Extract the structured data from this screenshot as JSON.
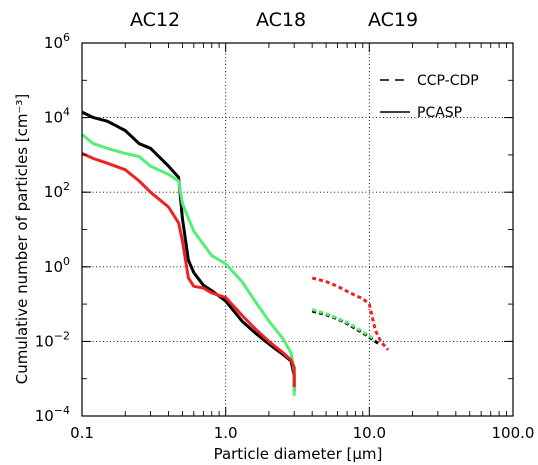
{
  "chart_data": {
    "type": "line",
    "xscale": "log",
    "yscale": "log",
    "xlim": [
      0.1,
      100.0
    ],
    "ylim": [
      0.0001,
      1000000
    ],
    "xlabel": "Particle diameter [μm]",
    "ylabel": "Cumulative number of particles [cm⁻³]",
    "x_ticks": [
      {
        "value": 0.1,
        "label": "0.1"
      },
      {
        "value": 1.0,
        "label": "1.0"
      },
      {
        "value": 10.0,
        "label": "10.0"
      },
      {
        "value": 100.0,
        "label": "100.0"
      }
    ],
    "y_ticks": [
      {
        "value": 0.0001,
        "base": "10",
        "exp": "−4"
      },
      {
        "value": 0.01,
        "base": "10",
        "exp": "−2"
      },
      {
        "value": 1,
        "base": "10",
        "exp": "0"
      },
      {
        "value": 100,
        "base": "10",
        "exp": "2"
      },
      {
        "value": 10000,
        "base": "10",
        "exp": "4"
      },
      {
        "value": 1000000,
        "base": "10",
        "exp": "6"
      }
    ],
    "grid": "dotted",
    "campaigns": [
      {
        "label": "AC12",
        "color": "#000000"
      },
      {
        "label": "AC18",
        "color": "#55ee77"
      },
      {
        "label": "AC19",
        "color": "#ee2222"
      }
    ],
    "legend": {
      "placement": "top-right",
      "entries": [
        {
          "label": "CCP-CDP",
          "style": "dashed"
        },
        {
          "label": "PCASP",
          "style": "solid"
        }
      ]
    },
    "series": [
      {
        "instrument": "PCASP",
        "campaign": "AC12",
        "color": "#000000",
        "style": "solid",
        "x": [
          0.1,
          0.12,
          0.15,
          0.2,
          0.25,
          0.3,
          0.4,
          0.47,
          0.5,
          0.55,
          0.6,
          0.7,
          0.8,
          1.0,
          1.3,
          1.6,
          2.0,
          2.5,
          2.85,
          3.0,
          3.0
        ],
        "y": [
          14000,
          10000,
          8000,
          4500,
          2000,
          1500,
          500,
          250,
          20,
          1.5,
          0.7,
          0.32,
          0.23,
          0.12,
          0.035,
          0.017,
          0.0085,
          0.0045,
          0.003,
          0.0012,
          0.00045
        ]
      },
      {
        "instrument": "PCASP",
        "campaign": "AC18",
        "color": "#55ee77",
        "style": "solid",
        "x": [
          0.1,
          0.12,
          0.15,
          0.2,
          0.25,
          0.3,
          0.4,
          0.47,
          0.5,
          0.55,
          0.6,
          0.7,
          0.8,
          1.0,
          1.3,
          1.6,
          2.0,
          2.5,
          2.85,
          3.0,
          3.0
        ],
        "y": [
          3500,
          2000,
          1500,
          1100,
          900,
          500,
          300,
          200,
          50,
          20,
          9,
          4,
          2,
          1.2,
          0.4,
          0.12,
          0.035,
          0.012,
          0.005,
          0.0015,
          0.00035
        ]
      },
      {
        "instrument": "PCASP",
        "campaign": "AC19",
        "color": "#ee2222",
        "style": "solid",
        "x": [
          0.1,
          0.12,
          0.15,
          0.2,
          0.25,
          0.3,
          0.4,
          0.47,
          0.5,
          0.55,
          0.6,
          0.7,
          0.8,
          1.0,
          1.3,
          1.6,
          2.0,
          2.5,
          2.85,
          3.0,
          3.0
        ],
        "y": [
          1100,
          800,
          600,
          400,
          200,
          100,
          40,
          15,
          5,
          0.5,
          0.3,
          0.27,
          0.2,
          0.15,
          0.05,
          0.022,
          0.01,
          0.005,
          0.0032,
          0.002,
          0.0006
        ]
      },
      {
        "instrument": "CCP-CDP",
        "campaign": "AC12",
        "color": "#000000",
        "style": "dashed",
        "x": [
          4.0,
          5.0,
          6.0,
          7.0,
          8.0,
          9.0,
          10.0,
          11.0,
          12.0
        ],
        "y": [
          0.065,
          0.052,
          0.04,
          0.03,
          0.022,
          0.017,
          0.013,
          0.01,
          0.008
        ]
      },
      {
        "instrument": "CCP-CDP",
        "campaign": "AC18",
        "color": "#55ee77",
        "style": "dashed",
        "x": [
          4.0,
          5.0,
          6.0,
          7.0,
          8.0,
          9.0,
          10.0,
          11.0
        ],
        "y": [
          0.072,
          0.055,
          0.042,
          0.032,
          0.024,
          0.018,
          0.014,
          0.011
        ]
      },
      {
        "instrument": "CCP-CDP",
        "campaign": "AC19",
        "color": "#ee2222",
        "style": "dashed",
        "x": [
          4.0,
          5.0,
          6.0,
          7.0,
          8.0,
          9.0,
          10.0,
          11.0,
          12.0,
          13.5
        ],
        "y": [
          0.5,
          0.4,
          0.3,
          0.22,
          0.17,
          0.14,
          0.1,
          0.02,
          0.01,
          0.006
        ]
      }
    ]
  }
}
